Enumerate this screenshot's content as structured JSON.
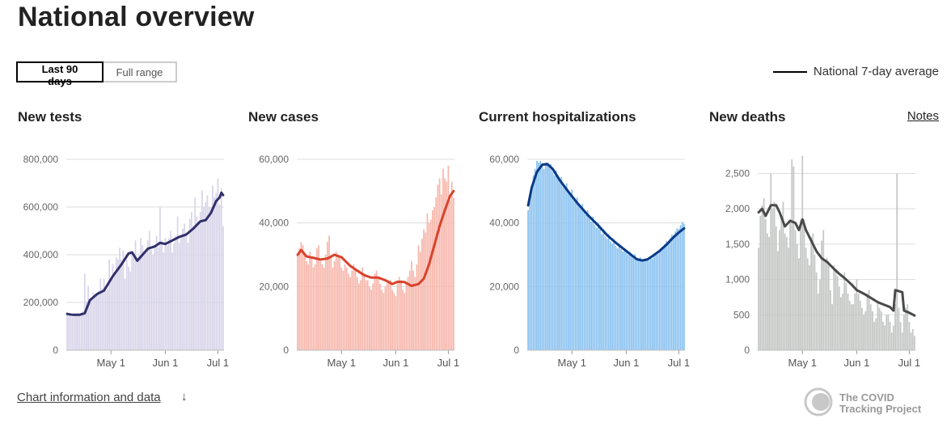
{
  "page": {
    "title": "National overview"
  },
  "range_toggle": {
    "options": [
      "Last 90 days",
      "Full range"
    ],
    "selected": "Last 90 days"
  },
  "legend": {
    "label": "National 7-day average"
  },
  "notes_label": "Notes",
  "footer": {
    "info_link": "Chart information and data",
    "info_arrow": "↓",
    "logo_text": [
      "The COVID",
      "Tracking Project"
    ]
  },
  "colors": {
    "tests_bar": "#d9d5ea",
    "tests_line": "#31306b",
    "cases_bar": "#f7b8ad",
    "cases_line": "#d9432c",
    "hosp_bar": "#8cc3f0",
    "hosp_line": "#0a3a87",
    "deaths_bar": "#c4c7c5",
    "deaths_line": "#4a4a4a"
  },
  "chart_data": [
    {
      "type": "bar",
      "title": "New tests",
      "x_start": "2020-04-06",
      "x_end": "2020-07-04",
      "xticks": [
        {
          "label": "May 1",
          "date": "2020-05-01"
        },
        {
          "label": "Jun 1",
          "date": "2020-06-01"
        },
        {
          "label": "Jul 1",
          "date": "2020-07-01"
        }
      ],
      "ylim": [
        0,
        800000
      ],
      "yticks": [
        0,
        200000,
        400000,
        600000,
        800000
      ],
      "ytick_labels": [
        "0",
        "200,000",
        "400,000",
        "600,000",
        "800,000"
      ],
      "bar_values": [
        160000,
        145000,
        150000,
        140000,
        150000,
        145000,
        155000,
        150000,
        155000,
        165000,
        320000,
        205000,
        270000,
        200000,
        210000,
        240000,
        235000,
        230000,
        250000,
        300000,
        260000,
        300000,
        250000,
        255000,
        380000,
        300000,
        360000,
        320000,
        390000,
        380000,
        430000,
        380000,
        420000,
        300000,
        380000,
        350000,
        330000,
        410000,
        390000,
        460000,
        380000,
        400000,
        470000,
        440000,
        400000,
        410000,
        460000,
        500000,
        420000,
        400000,
        440000,
        480000,
        430000,
        600000,
        460000,
        410000,
        470000,
        440000,
        470000,
        500000,
        410000,
        450000,
        480000,
        560000,
        450000,
        470000,
        510000,
        530000,
        490000,
        450000,
        550000,
        580000,
        520000,
        640000,
        560000,
        540000,
        580000,
        670000,
        600000,
        620000,
        650000,
        600000,
        600000,
        690000,
        640000,
        660000,
        720000,
        610000,
        680000,
        520000
      ],
      "avg_points": [
        [
          0,
          152000
        ],
        [
          3,
          148000
        ],
        [
          7,
          148000
        ],
        [
          10,
          155000
        ],
        [
          13,
          210000
        ],
        [
          17,
          235000
        ],
        [
          21,
          250000
        ],
        [
          26,
          310000
        ],
        [
          31,
          360000
        ],
        [
          35,
          405000
        ],
        [
          37,
          410000
        ],
        [
          40,
          375000
        ],
        [
          43,
          400000
        ],
        [
          46,
          425000
        ],
        [
          50,
          435000
        ],
        [
          53,
          450000
        ],
        [
          56,
          445000
        ],
        [
          60,
          460000
        ],
        [
          64,
          475000
        ],
        [
          68,
          485000
        ],
        [
          72,
          510000
        ],
        [
          76,
          540000
        ],
        [
          79,
          545000
        ],
        [
          82,
          575000
        ],
        [
          85,
          625000
        ],
        [
          87,
          640000
        ],
        [
          88,
          660000
        ],
        [
          89,
          650000
        ]
      ],
      "series": [
        {
          "name": "National 7-day average"
        }
      ]
    },
    {
      "type": "bar",
      "title": "New cases",
      "x_start": "2020-04-06",
      "x_end": "2020-07-04",
      "xticks": [
        {
          "label": "May 1",
          "date": "2020-05-01"
        },
        {
          "label": "Jun 1",
          "date": "2020-06-01"
        },
        {
          "label": "Jul 1",
          "date": "2020-07-01"
        }
      ],
      "ylim": [
        0,
        60000
      ],
      "yticks": [
        0,
        20000,
        40000,
        60000
      ],
      "ytick_labels": [
        "0",
        "20,000",
        "40,000",
        "60,000"
      ],
      "bar_values": [
        30000,
        32000,
        34000,
        33000,
        30000,
        28000,
        27000,
        31000,
        29000,
        26000,
        27000,
        32000,
        33000,
        28000,
        27000,
        26000,
        30000,
        34000,
        36000,
        29000,
        26000,
        28000,
        31000,
        30000,
        29000,
        26000,
        25000,
        27000,
        26000,
        24000,
        23000,
        25000,
        27000,
        25000,
        23000,
        21000,
        22000,
        26000,
        24000,
        22000,
        22000,
        20000,
        19000,
        21000,
        24000,
        25000,
        23000,
        21000,
        19000,
        18000,
        20000,
        21000,
        22000,
        22000,
        19000,
        18000,
        17000,
        21000,
        23000,
        22000,
        19000,
        18000,
        21000,
        23000,
        25000,
        28000,
        25000,
        23000,
        27000,
        33000,
        31000,
        35000,
        38000,
        37000,
        43000,
        40000,
        41000,
        44000,
        45000,
        48000,
        52000,
        54000,
        49000,
        57000,
        54000,
        53000,
        58000,
        47000,
        53000,
        48000
      ],
      "avg_points": [
        [
          0,
          30000
        ],
        [
          2,
          31500
        ],
        [
          5,
          29500
        ],
        [
          9,
          29000
        ],
        [
          13,
          28500
        ],
        [
          17,
          28800
        ],
        [
          21,
          30000
        ],
        [
          25,
          29200
        ],
        [
          30,
          26500
        ],
        [
          34,
          25000
        ],
        [
          38,
          23600
        ],
        [
          42,
          22800
        ],
        [
          46,
          22800
        ],
        [
          50,
          22000
        ],
        [
          54,
          20800
        ],
        [
          57,
          21500
        ],
        [
          61,
          21400
        ],
        [
          65,
          20200
        ],
        [
          69,
          20800
        ],
        [
          72,
          22500
        ],
        [
          75,
          27000
        ],
        [
          78,
          33000
        ],
        [
          81,
          39000
        ],
        [
          84,
          44000
        ],
        [
          87,
          48500
        ],
        [
          89,
          50000
        ]
      ],
      "series": [
        {
          "name": "National 7-day average"
        }
      ]
    },
    {
      "type": "bar",
      "title": "Current hospitalizations",
      "x_start": "2020-04-06",
      "x_end": "2020-07-04",
      "xticks": [
        {
          "label": "May 1",
          "date": "2020-05-01"
        },
        {
          "label": "Jun 1",
          "date": "2020-06-01"
        },
        {
          "label": "Jul 1",
          "date": "2020-07-01"
        }
      ],
      "ylim": [
        0,
        60000
      ],
      "yticks": [
        0,
        20000,
        40000,
        60000
      ],
      "ytick_labels": [
        "0",
        "20,000",
        "40,000",
        "60,000"
      ],
      "bar_values": [
        44000,
        49000,
        52000,
        55000,
        57000,
        59500,
        59000,
        59500,
        58000,
        57000,
        59000,
        58500,
        58000,
        58500,
        56000,
        55000,
        56500,
        54500,
        53500,
        54500,
        51500,
        51000,
        52500,
        50000,
        49000,
        50500,
        47000,
        46500,
        48000,
        45500,
        44500,
        46000,
        43500,
        42500,
        44000,
        41500,
        40500,
        42000,
        39500,
        38500,
        40000,
        38000,
        36500,
        38000,
        35800,
        35000,
        36500,
        34200,
        33500,
        35000,
        32800,
        32000,
        33300,
        31800,
        31000,
        32100,
        30700,
        30000,
        31000,
        29800,
        29300,
        30200,
        28800,
        28500,
        29200,
        28300,
        28000,
        28800,
        28100,
        28300,
        29300,
        28800,
        29500,
        30500,
        30200,
        31300,
        32300,
        32000,
        33300,
        34300,
        34000,
        35300,
        36300,
        36100,
        37300,
        38300,
        38100,
        39300,
        40300,
        39700
      ],
      "avg_points": [
        [
          0,
          45500
        ],
        [
          2,
          51000
        ],
        [
          5,
          56000
        ],
        [
          8,
          58300
        ],
        [
          11,
          58500
        ],
        [
          14,
          57000
        ],
        [
          18,
          53500
        ],
        [
          23,
          49800
        ],
        [
          28,
          46300
        ],
        [
          34,
          42500
        ],
        [
          40,
          39200
        ],
        [
          45,
          36200
        ],
        [
          50,
          33800
        ],
        [
          55,
          31600
        ],
        [
          59,
          29900
        ],
        [
          62,
          28600
        ],
        [
          65,
          28200
        ],
        [
          68,
          28500
        ],
        [
          71,
          29600
        ],
        [
          75,
          31200
        ],
        [
          79,
          33200
        ],
        [
          83,
          35500
        ],
        [
          86,
          37000
        ],
        [
          89,
          38300
        ]
      ],
      "series": [
        {
          "name": "National 7-day average"
        }
      ]
    },
    {
      "type": "bar",
      "title": "New deaths",
      "x_start": "2020-04-06",
      "x_end": "2020-07-04",
      "xticks": [
        {
          "label": "May 1",
          "date": "2020-05-01"
        },
        {
          "label": "Jun 1",
          "date": "2020-06-01"
        },
        {
          "label": "Jul 1",
          "date": "2020-07-01"
        }
      ],
      "ylim": [
        0,
        2700
      ],
      "yticks": [
        0,
        500,
        1000,
        1500,
        2000,
        2500
      ],
      "ytick_labels": [
        "0",
        "500",
        "1,000",
        "1,500",
        "2,000",
        "2,500"
      ],
      "bar_values": [
        1450,
        1900,
        2050,
        2150,
        1850,
        1650,
        1600,
        2500,
        2000,
        2100,
        1750,
        1400,
        1700,
        1900,
        2100,
        1650,
        1600,
        1450,
        1850,
        2700,
        2600,
        1700,
        1500,
        1300,
        1850,
        2750,
        1850,
        1450,
        1300,
        1200,
        1600,
        1650,
        1350,
        1100,
        800,
        1000,
        1550,
        1700,
        1250,
        1300,
        1200,
        850,
        650,
        1200,
        1150,
        1050,
        900,
        750,
        800,
        1100,
        950,
        800,
        700,
        650,
        650,
        800,
        1000,
        800,
        700,
        600,
        500,
        550,
        800,
        850,
        650,
        550,
        400,
        450,
        700,
        600,
        550,
        400,
        350,
        500,
        500,
        400,
        250,
        350,
        650,
        2500,
        600,
        400,
        250,
        500,
        600,
        650,
        400,
        250,
        300,
        200
      ],
      "avg_points": [
        [
          0,
          1950
        ],
        [
          2,
          2000
        ],
        [
          4,
          1900
        ],
        [
          7,
          2050
        ],
        [
          10,
          2050
        ],
        [
          12,
          1950
        ],
        [
          15,
          1750
        ],
        [
          18,
          1830
        ],
        [
          21,
          1800
        ],
        [
          23,
          1700
        ],
        [
          25,
          1850
        ],
        [
          27,
          1700
        ],
        [
          30,
          1550
        ],
        [
          33,
          1400
        ],
        [
          36,
          1300
        ],
        [
          39,
          1250
        ],
        [
          43,
          1150
        ],
        [
          46,
          1080
        ],
        [
          49,
          1020
        ],
        [
          53,
          930
        ],
        [
          56,
          850
        ],
        [
          60,
          800
        ],
        [
          64,
          740
        ],
        [
          68,
          680
        ],
        [
          72,
          640
        ],
        [
          75,
          610
        ],
        [
          77,
          560
        ],
        [
          78,
          850
        ],
        [
          82,
          820
        ],
        [
          83,
          560
        ],
        [
          86,
          530
        ],
        [
          89,
          490
        ]
      ],
      "series": [
        {
          "name": "National 7-day average"
        }
      ]
    }
  ]
}
